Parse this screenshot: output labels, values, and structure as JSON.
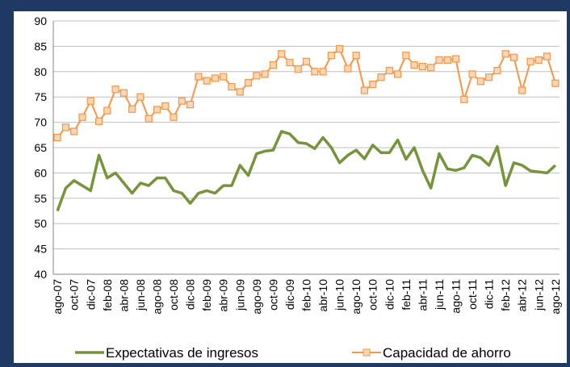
{
  "chart_data": {
    "type": "line",
    "categories": [
      "ago-07",
      null,
      "oct-07",
      null,
      "dic-07",
      null,
      "feb-08",
      null,
      "abr-08",
      null,
      "jun-08",
      null,
      "ago-08",
      null,
      "oct-08",
      null,
      "dic-08",
      null,
      "feb-09",
      null,
      "abr-09",
      null,
      "jun-09",
      null,
      "ago-09",
      null,
      "oct-09",
      null,
      "dic-09",
      null,
      "feb-10",
      null,
      "abr-10",
      null,
      "jun-10",
      null,
      "ago-10",
      null,
      "oct-10",
      null,
      "dic-10",
      null,
      "feb-11",
      null,
      "abr-11",
      null,
      "jun-11",
      null,
      "ago-11",
      null,
      "oct-11",
      null,
      "dic-11",
      null,
      "feb-12",
      null,
      "abr-12",
      null,
      "jun-12",
      null,
      "ago-12"
    ],
    "series": [
      {
        "name": "Expectativas de ingresos",
        "color": "#77933c",
        "marker": false,
        "values": [
          52.5,
          57,
          58.5,
          57.5,
          56.5,
          63.5,
          59,
          60,
          58,
          56,
          58,
          57.5,
          59,
          59,
          56.5,
          56,
          54,
          56,
          56.5,
          56,
          57.5,
          57.5,
          61.5,
          59.5,
          63.8,
          64.3,
          64.5,
          68.2,
          67.7,
          66,
          65.8,
          64.8,
          67,
          65,
          62,
          63.5,
          64.5,
          62.8,
          65.5,
          64,
          64,
          66.5,
          62.7,
          65,
          60.5,
          57,
          63.8,
          60.8,
          60.5,
          61,
          63.5,
          63,
          61.5,
          65.2,
          57.5,
          62,
          61.5,
          60.4,
          60.2,
          60,
          61.5
        ]
      },
      {
        "name": "Capacidad de ahorro",
        "color": "#f79646",
        "marker": true,
        "values": [
          67,
          69,
          68.2,
          71,
          74.2,
          70.2,
          72.3,
          76.5,
          75.8,
          72.6,
          75,
          70.7,
          72.5,
          73.2,
          71,
          74.2,
          73.5,
          79,
          78.2,
          78.7,
          79,
          77,
          76,
          77.8,
          79.2,
          79.5,
          81.3,
          83.5,
          81.8,
          80.5,
          82,
          80,
          80,
          83.2,
          84.5,
          80.6,
          83.2,
          76.3,
          77.5,
          78.9,
          80.2,
          79.5,
          83.2,
          81.3,
          81,
          80.8,
          82.3,
          82.3,
          82.5,
          74.5,
          79.5,
          78.1,
          78.9,
          80.2,
          83.5,
          82.8,
          76.3,
          82,
          82.3,
          83,
          77.7
        ]
      }
    ],
    "ylim": [
      40,
      90
    ],
    "yticks": [
      40,
      45,
      50,
      55,
      60,
      65,
      70,
      75,
      80,
      85,
      90
    ],
    "grid": true,
    "legend": "bottom"
  }
}
